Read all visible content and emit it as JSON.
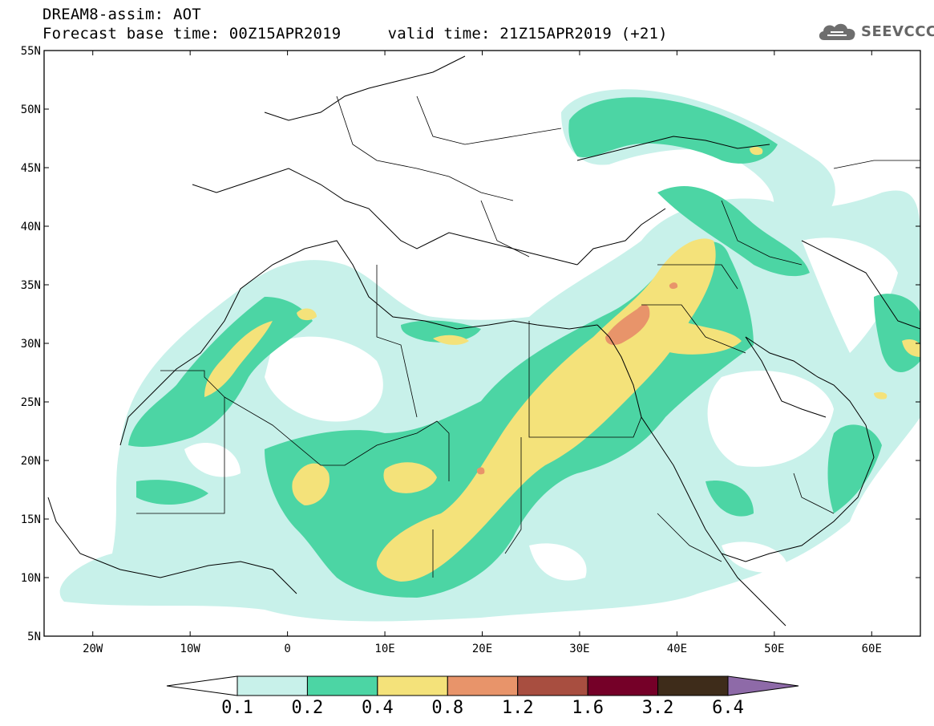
{
  "header": {
    "line1": "DREAM8-assim: AOT",
    "line2": "Forecast base time: 00Z15APR2019     valid time: 21Z15APR2019 (+21)"
  },
  "logo": {
    "text": "SEEVCCC",
    "icon": "cloud-icon"
  },
  "map": {
    "lat_labels": [
      "55N",
      "50N",
      "45N",
      "40N",
      "35N",
      "30N",
      "25N",
      "20N",
      "15N",
      "10N",
      "5N"
    ],
    "lon_labels": [
      "20W",
      "10W",
      "0",
      "10E",
      "20E",
      "30E",
      "40E",
      "50E",
      "60E"
    ]
  },
  "colorbar": {
    "labels": [
      "0.1",
      "0.2",
      "0.4",
      "0.8",
      "1.2",
      "1.6",
      "3.2",
      "6.4"
    ],
    "colors": [
      "#ffffff",
      "#c8f1ea",
      "#4cd5a4",
      "#f4e27a",
      "#e8946a",
      "#a84e40",
      "#750028",
      "#3e2c1a",
      "#8e6aa8"
    ]
  },
  "palette": {
    "level1": "#c8f1ea",
    "level2": "#4cd5a4",
    "level3": "#f4e27a",
    "level4": "#e8946a"
  }
}
